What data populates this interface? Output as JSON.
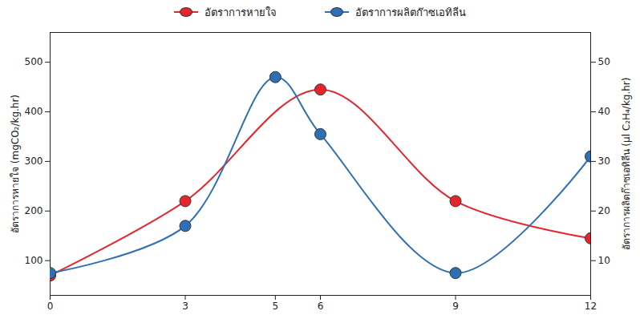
{
  "chart_data": {
    "type": "line",
    "xlim": [
      0,
      12
    ],
    "xticks": [
      0,
      3,
      5,
      6,
      9,
      12
    ],
    "ylabel": "อัตราการหายใจ (mgCO₂/kg.hr)",
    "ylim": [
      30,
      560
    ],
    "yticks": [
      100,
      200,
      300,
      400,
      500
    ],
    "y2label": "อัตราการผลิตก๊าซเอทิลีน (µl C₂H₄/kg.hr)",
    "y2lim": [
      3,
      56
    ],
    "y2ticks": [
      10,
      20,
      30,
      40,
      50
    ],
    "legend": "top",
    "series": [
      {
        "name": "อัตราการหายใจ",
        "color": "#e3262b",
        "marker": "circle",
        "x": [
          0,
          3,
          6,
          9,
          12
        ],
        "values": [
          70,
          220,
          445,
          220,
          145
        ]
      },
      {
        "name": "อัตราการผลิตก๊าซเอทิลีน",
        "color": "#2e6fb5",
        "marker": "circle",
        "axis": "y2",
        "x": [
          0,
          3,
          5,
          6,
          9,
          12
        ],
        "values": [
          7.5,
          17,
          47,
          35.5,
          7.5,
          31
        ]
      }
    ]
  }
}
